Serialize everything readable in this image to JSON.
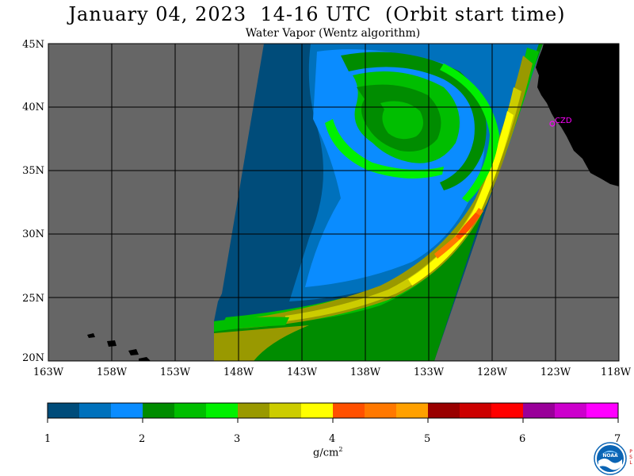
{
  "title": "January 04, 2023  14-16 UTC  (Orbit start time)",
  "subtitle": "Water Vapor (Wentz algorithm)",
  "map": {
    "lat_labels": [
      "45N",
      "40N",
      "35N",
      "30N",
      "25N",
      "20N"
    ],
    "lon_labels": [
      "163W",
      "158W",
      "153W",
      "148W",
      "143W",
      "138W",
      "133W",
      "128W",
      "123W",
      "118W"
    ],
    "lat_range": [
      20,
      45
    ],
    "lon_range": [
      -163,
      -118
    ],
    "station_label": "CZD",
    "no_data_color": "#666666",
    "land_color": "#000000",
    "grid_color": "#000000",
    "station_color": "#ff00ff"
  },
  "colorbar": {
    "colors": [
      "#004c7a",
      "#0071bc",
      "#0a8cff",
      "#008c00",
      "#00be00",
      "#00f000",
      "#999900",
      "#cccc00",
      "#ffff00",
      "#ff5000",
      "#ff7800",
      "#ffa000",
      "#990000",
      "#cc0000",
      "#ff0000",
      "#990099",
      "#cc00cc",
      "#ff00ff"
    ],
    "ticks": [
      "1",
      "2",
      "3",
      "4",
      "5",
      "6",
      "7"
    ],
    "units_base": "g/cm",
    "units_exp": "2"
  },
  "logo": {
    "name": "NOAA",
    "psl": "PSL"
  }
}
